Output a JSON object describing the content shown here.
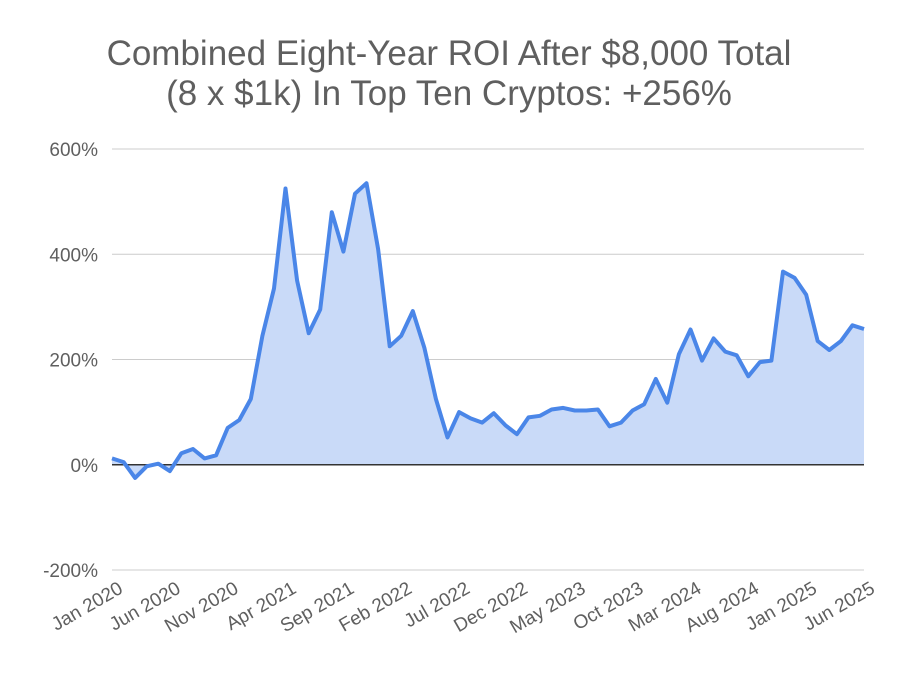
{
  "chart_data": {
    "type": "area",
    "title_lines": [
      "Combined Eight-Year ROI After $8,000 Total",
      "(8 x $1k) In Top Ten Cryptos: +256%"
    ],
    "xlabel": "",
    "ylabel": "",
    "ylim": [
      -200,
      600
    ],
    "y_ticks": [
      -200,
      0,
      200,
      400,
      600
    ],
    "y_tick_labels": [
      "-200%",
      "0%",
      "200%",
      "400%",
      "600%"
    ],
    "x_tick_labels": [
      "Jan 2020",
      "Jun 2020",
      "Nov 2020",
      "Apr 2021",
      "Sep 2021",
      "Feb 2022",
      "Jul 2022",
      "Dec 2022",
      "May 2023",
      "Oct 2023",
      "Mar 2024",
      "Aug 2024",
      "Jan 2025",
      "Jun 2025"
    ],
    "x_start": "Jan 2020",
    "x_end": "Jun 2025",
    "grid": true,
    "legend": "none",
    "colors": {
      "line": "#4a86e8",
      "fill": "#c9daf8",
      "grid": "#cccccc",
      "zero_line": "#333333"
    },
    "series": [
      {
        "values": [
          12,
          5,
          -25,
          -3,
          2,
          -12,
          22,
          30,
          12,
          18,
          70,
          85,
          125,
          245,
          335,
          525,
          350,
          250,
          295,
          480,
          405,
          515,
          535,
          410,
          225,
          245,
          292,
          222,
          125,
          52,
          100,
          88,
          80,
          98,
          75,
          58,
          90,
          93,
          105,
          108,
          103,
          103,
          105,
          73,
          80,
          103,
          115,
          163,
          118,
          210,
          257,
          198,
          240,
          215,
          208,
          168,
          195,
          198,
          367,
          355,
          323,
          235,
          218,
          235,
          265,
          258
        ]
      }
    ]
  }
}
